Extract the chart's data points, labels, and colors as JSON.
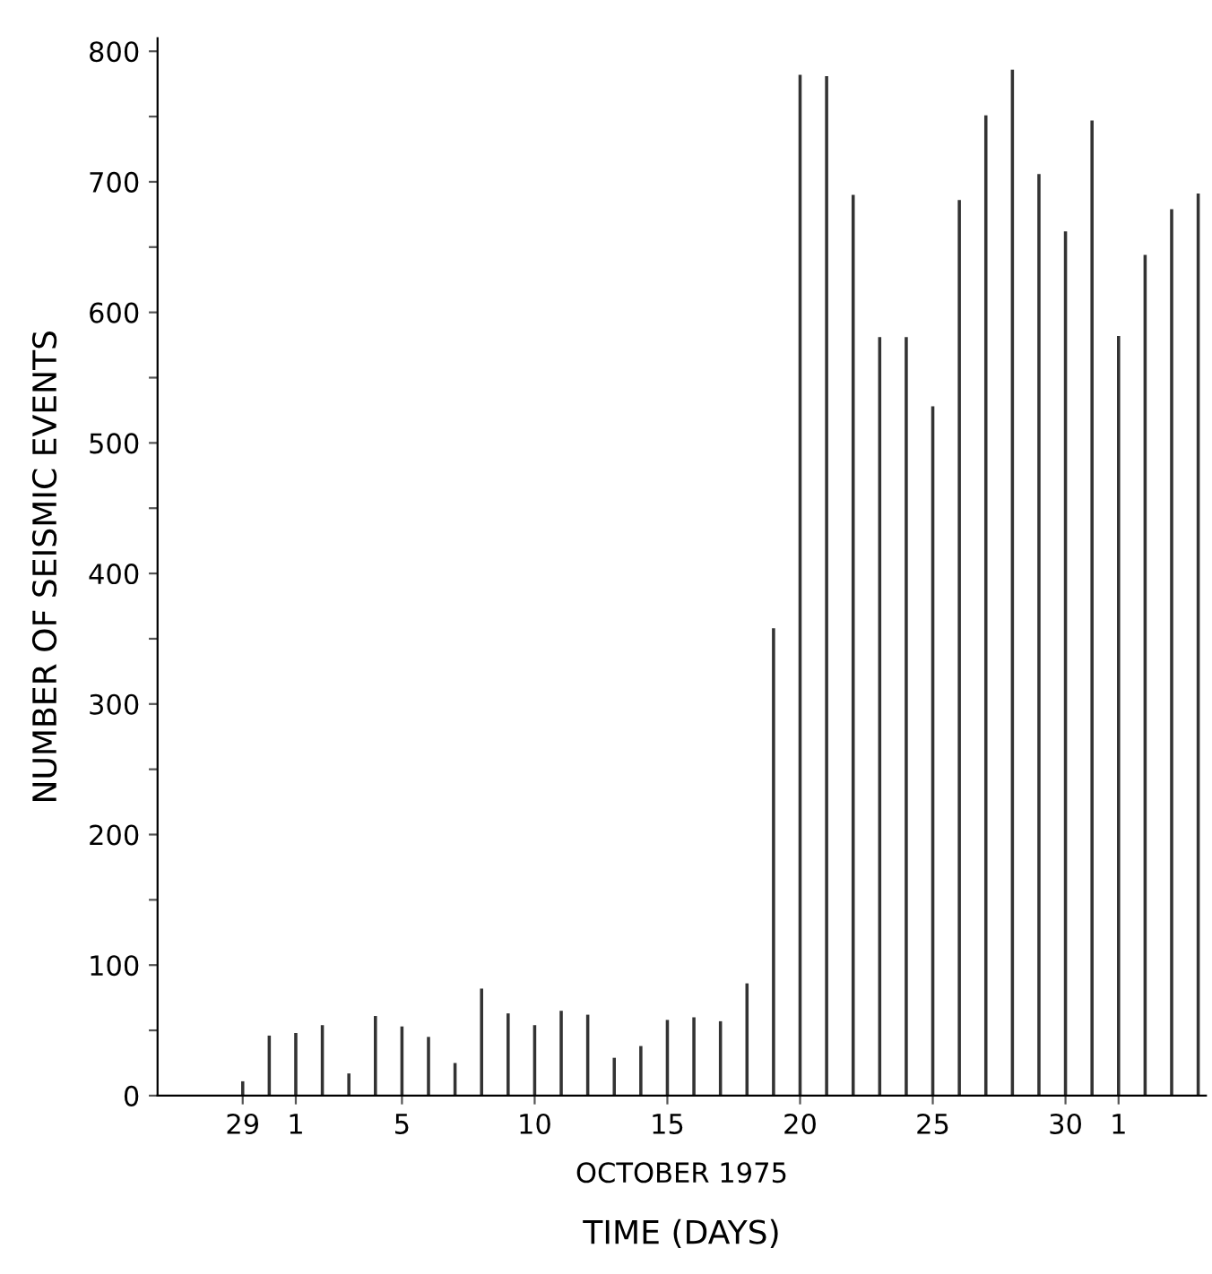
{
  "chart_data": {
    "type": "bar",
    "ylabel": "NUMBER OF SEISMIC EVENTS",
    "xlabel": "TIME (DAYS)",
    "annotations": [
      "OCTOBER 1975"
    ],
    "x": [
      "1975-09-29",
      "1975-09-30",
      "1975-10-01",
      "1975-10-02",
      "1975-10-03",
      "1975-10-04",
      "1975-10-05",
      "1975-10-06",
      "1975-10-07",
      "1975-10-08",
      "1975-10-09",
      "1975-10-10",
      "1975-10-11",
      "1975-10-12",
      "1975-10-13",
      "1975-10-14",
      "1975-10-15",
      "1975-10-16",
      "1975-10-17",
      "1975-10-18",
      "1975-10-19",
      "1975-10-20",
      "1975-10-21",
      "1975-10-22",
      "1975-10-23",
      "1975-10-24",
      "1975-10-25",
      "1975-10-26",
      "1975-10-27",
      "1975-10-28",
      "1975-10-29",
      "1975-10-30",
      "1975-10-31",
      "1975-11-01",
      "1975-11-02",
      "1975-11-03",
      "1975-11-04"
    ],
    "values": [
      11,
      46,
      48,
      54,
      17,
      61,
      53,
      45,
      25,
      82,
      63,
      54,
      65,
      62,
      29,
      38,
      58,
      60,
      57,
      86,
      358,
      782,
      781,
      690,
      581,
      581,
      528,
      686,
      751,
      786,
      706,
      662,
      747,
      582,
      644,
      679,
      691
    ],
    "color": "#333333",
    "xlim": [
      "1975-09-25T19:00",
      "1975-11-04T07:00"
    ],
    "xticks": [
      {
        "value": "1975-09-29",
        "label": "29"
      },
      {
        "value": "1975-10-01",
        "label": "1"
      },
      {
        "value": "1975-10-05",
        "label": "5"
      },
      {
        "value": "1975-10-10",
        "label": "10"
      },
      {
        "value": "1975-10-15",
        "label": "15"
      },
      {
        "value": "1975-10-20",
        "label": "20"
      },
      {
        "value": "1975-10-25",
        "label": "25"
      },
      {
        "value": "1975-10-30",
        "label": "30"
      },
      {
        "value": "1975-11-01",
        "label": "1"
      }
    ],
    "ylim": [
      0,
      810
    ],
    "yticks": [
      0,
      {
        "value": 50,
        "label": null
      },
      100,
      {
        "value": 150,
        "label": null
      },
      200,
      {
        "value": 250,
        "label": null
      },
      300,
      {
        "value": 350,
        "label": null
      },
      400,
      {
        "value": 450,
        "label": null
      },
      500,
      {
        "value": 550,
        "label": null
      },
      600,
      {
        "value": 650,
        "label": null
      },
      700,
      {
        "value": 750,
        "label": null
      },
      800
    ],
    "grid": false,
    "legend": false
  }
}
